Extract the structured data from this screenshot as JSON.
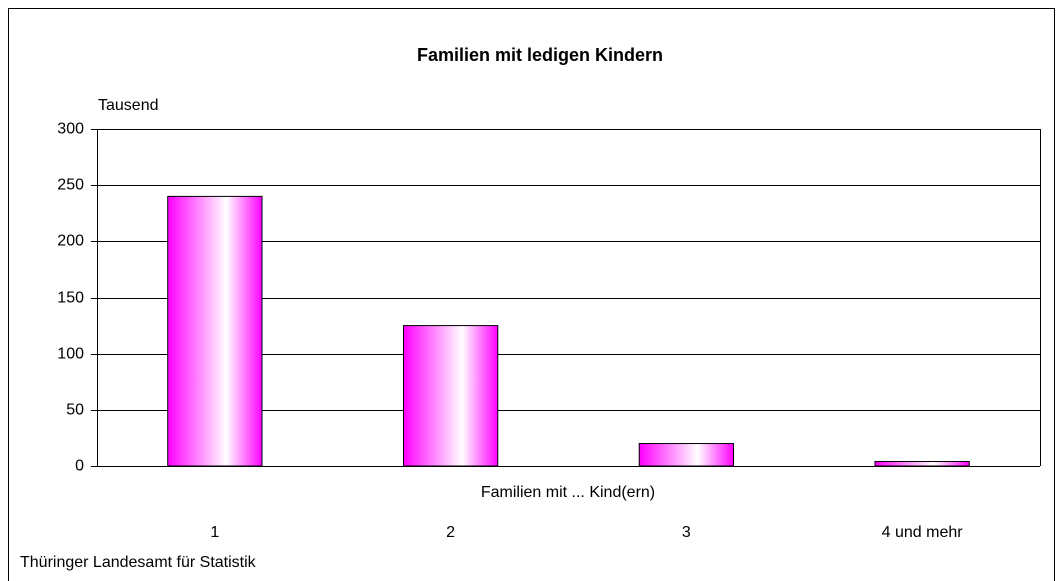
{
  "chart_data": {
    "type": "bar",
    "title": "Familien mit ledigen Kindern",
    "y_label": "Tausend",
    "x_label": "Familien mit ... Kind(ern)",
    "categories": [
      "1",
      "2",
      "3",
      "4 und mehr"
    ],
    "values": [
      240,
      125,
      20,
      4
    ],
    "color": "#ff00ff",
    "ylim": [
      0,
      300
    ],
    "yticks": [
      0,
      50,
      100,
      150,
      200,
      250,
      300
    ],
    "grid": true,
    "source": "Thüringer Landesamt für Statistik"
  }
}
